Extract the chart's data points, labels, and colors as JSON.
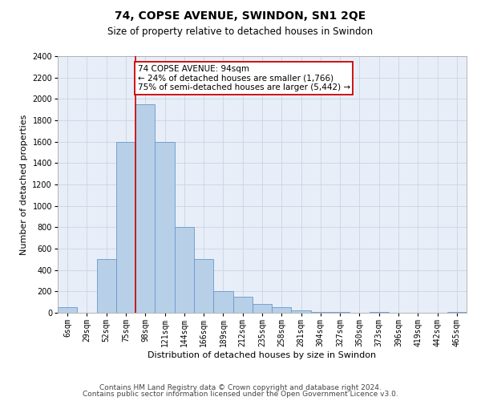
{
  "title": "74, COPSE AVENUE, SWINDON, SN1 2QE",
  "subtitle": "Size of property relative to detached houses in Swindon",
  "xlabel": "Distribution of detached houses by size in Swindon",
  "ylabel": "Number of detached properties",
  "categories": [
    "6sqm",
    "29sqm",
    "52sqm",
    "75sqm",
    "98sqm",
    "121sqm",
    "144sqm",
    "166sqm",
    "189sqm",
    "212sqm",
    "235sqm",
    "258sqm",
    "281sqm",
    "304sqm",
    "327sqm",
    "350sqm",
    "373sqm",
    "396sqm",
    "419sqm",
    "442sqm",
    "465sqm"
  ],
  "values": [
    50,
    0,
    500,
    1600,
    1950,
    1600,
    800,
    500,
    200,
    150,
    80,
    50,
    20,
    10,
    5,
    0,
    10,
    0,
    0,
    0,
    10
  ],
  "bar_color": "#b8cfe8",
  "bar_edge_color": "#6699cc",
  "annotation_text": "74 COPSE AVENUE: 94sqm\n← 24% of detached houses are smaller (1,766)\n75% of semi-detached houses are larger (5,442) →",
  "annotation_box_color": "#ffffff",
  "annotation_box_edge_color": "#cc0000",
  "vline_color": "#cc0000",
  "vline_x": 3.5,
  "ylim": [
    0,
    2400
  ],
  "yticks": [
    0,
    200,
    400,
    600,
    800,
    1000,
    1200,
    1400,
    1600,
    1800,
    2000,
    2200,
    2400
  ],
  "grid_color": "#c8d4e4",
  "background_color": "#e8eef8",
  "footer_line1": "Contains HM Land Registry data © Crown copyright and database right 2024.",
  "footer_line2": "Contains public sector information licensed under the Open Government Licence v3.0.",
  "title_fontsize": 10,
  "subtitle_fontsize": 8.5,
  "xlabel_fontsize": 8,
  "ylabel_fontsize": 8,
  "tick_fontsize": 7,
  "annot_fontsize": 7.5,
  "footer_fontsize": 6.5
}
